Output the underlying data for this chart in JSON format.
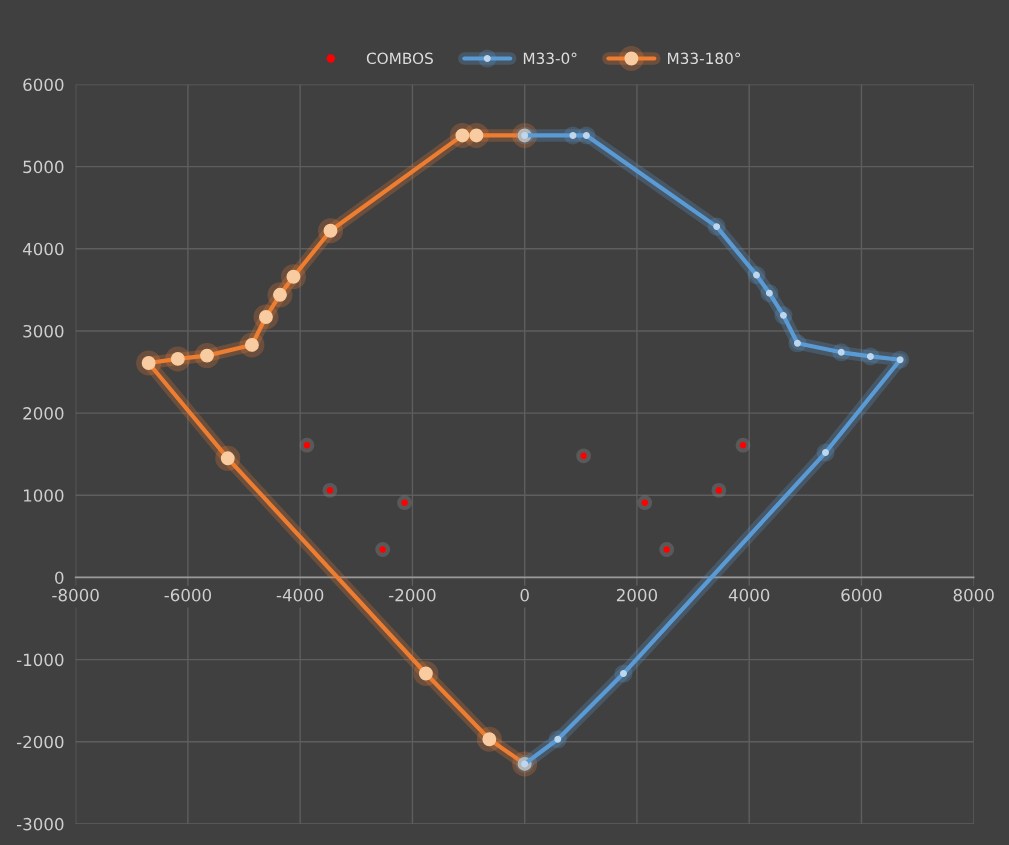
{
  "chart_data": {
    "type": "line",
    "xlim": [
      -8000,
      8000
    ],
    "ylim": [
      -3000,
      6000
    ],
    "xticks": [
      -8000,
      -6000,
      -4000,
      -2000,
      0,
      2000,
      4000,
      6000,
      8000
    ],
    "yticks": [
      -3000,
      -2000,
      -1000,
      0,
      1000,
      2000,
      3000,
      4000,
      5000,
      6000
    ],
    "grid": true,
    "legend": "top",
    "marker": "circle",
    "line_style": "solid",
    "series": [
      {
        "name": "COMBOS",
        "type": "scatter",
        "color": "#ff0000",
        "x": [
          -3880,
          -3470,
          -2140,
          -2530,
          1050,
          2140,
          2530,
          3460,
          3890
        ],
        "values": [
          1610,
          1060,
          910,
          340,
          1480,
          910,
          340,
          1060,
          1610
        ]
      },
      {
        "name": "M33-0°",
        "type": "line",
        "color": "#5b9bd5",
        "x": [
          0,
          860,
          1100,
          3420,
          4130,
          4360,
          4610,
          4860,
          5640,
          6160,
          6690,
          5360,
          1760,
          590,
          0
        ],
        "values": [
          5380,
          5380,
          5380,
          4270,
          3680,
          3460,
          3190,
          2850,
          2740,
          2690,
          2650,
          1520,
          -1170,
          -1970,
          -2270
        ]
      },
      {
        "name": "M33-180°",
        "type": "line",
        "color": "#ed7d31",
        "x": [
          0,
          -860,
          -1110,
          -3460,
          -4120,
          -4360,
          -4610,
          -4860,
          -5660,
          -6180,
          -6700,
          -5290,
          -1760,
          -630,
          0
        ],
        "values": [
          5380,
          5380,
          5380,
          4220,
          3660,
          3440,
          3170,
          2830,
          2700,
          2660,
          2610,
          1450,
          -1170,
          -1970,
          -2270
        ]
      }
    ]
  }
}
